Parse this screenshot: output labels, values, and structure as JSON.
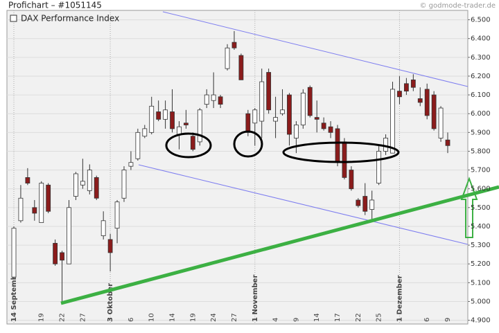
{
  "chart_data": {
    "type": "candlestick",
    "title": "Profichart – #1051145",
    "source": "© godmode-trader.de",
    "legend": "DAX Performance Index",
    "up_color": "#ffffff",
    "down_color": "#8b1c1c",
    "grid": true,
    "categories": [
      "14 September",
      null,
      null,
      null,
      "19",
      null,
      null,
      "22",
      null,
      null,
      "27",
      null,
      null,
      null,
      "3 Oktober",
      null,
      null,
      "6",
      null,
      null,
      "10",
      null,
      null,
      "14",
      null,
      null,
      "19",
      null,
      null,
      "24",
      null,
      null,
      "27",
      null,
      null,
      "1 November",
      null,
      null,
      "4",
      null,
      null,
      "9",
      null,
      null,
      "14",
      null,
      null,
      "17",
      null,
      null,
      "22",
      null,
      null,
      "25",
      null,
      null,
      "1 Dezember",
      null,
      null,
      null,
      "6",
      null,
      null,
      "9"
    ],
    "open": [
      5.13,
      5.43,
      5.66,
      5.5,
      5.42,
      5.62,
      5.31,
      5.26,
      5.2,
      5.56,
      5.62,
      5.59,
      5.66,
      5.35,
      5.33,
      5.39,
      5.55,
      5.72,
      5.76,
      5.88,
      5.9,
      6.01,
      5.97,
      6.01,
      5.89,
      5.95,
      5.88,
      5.85,
      6.05,
      6.07,
      6.09,
      6.24,
      6.38,
      6.31,
      6.0,
      5.95,
      5.96,
      6.22,
      5.96,
      6.0,
      6.1,
      5.87,
      5.94,
      6.14,
      5.98,
      5.95,
      5.93,
      5.92,
      5.85,
      5.7,
      5.54,
      5.56,
      5.49,
      5.63,
      5.8,
      5.79,
      6.12,
      6.16,
      6.18,
      6.08,
      6.13,
      6.1,
      5.87,
      5.86
    ],
    "high": [
      5.4,
      5.62,
      5.71,
      5.54,
      5.64,
      5.63,
      5.33,
      5.27,
      5.54,
      5.69,
      5.76,
      5.73,
      5.67,
      5.48,
      5.36,
      5.54,
      5.72,
      5.8,
      5.92,
      5.94,
      6.09,
      6.07,
      6.07,
      6.13,
      5.96,
      6.02,
      5.9,
      6.03,
      6.13,
      6.22,
      6.1,
      6.37,
      6.44,
      6.32,
      6.02,
      6.03,
      6.24,
      6.24,
      6.09,
      6.13,
      6.11,
      5.96,
      6.13,
      6.15,
      6.07,
      5.98,
      5.96,
      5.94,
      5.87,
      5.72,
      5.55,
      5.63,
      5.59,
      5.83,
      5.89,
      6.17,
      6.2,
      6.19,
      6.21,
      6.14,
      6.16,
      6.12,
      6.04,
      5.9
    ],
    "low": [
      5.12,
      5.42,
      5.62,
      5.43,
      5.42,
      5.47,
      5.19,
      4.99,
      5.2,
      5.54,
      5.6,
      5.57,
      5.54,
      5.33,
      5.16,
      5.31,
      5.53,
      5.7,
      5.75,
      5.87,
      5.89,
      5.96,
      5.92,
      5.9,
      5.81,
      5.92,
      5.8,
      5.83,
      6.03,
      6.03,
      6.03,
      6.23,
      6.34,
      6.18,
      5.88,
      5.83,
      5.87,
      6.0,
      5.87,
      5.99,
      5.83,
      5.79,
      5.92,
      5.98,
      5.9,
      5.91,
      5.87,
      5.72,
      5.65,
      5.59,
      5.5,
      5.46,
      5.43,
      5.62,
      5.78,
      5.79,
      6.05,
      6.1,
      6.12,
      6.04,
      5.97,
      5.91,
      5.85,
      5.79
    ],
    "close": [
      5.39,
      5.55,
      5.63,
      5.47,
      5.63,
      5.48,
      5.2,
      5.22,
      5.5,
      5.68,
      5.64,
      5.7,
      5.55,
      5.43,
      5.26,
      5.53,
      5.7,
      5.74,
      5.9,
      5.92,
      6.04,
      5.97,
      6.02,
      5.92,
      5.93,
      5.94,
      5.81,
      6.02,
      6.1,
      6.1,
      6.05,
      6.35,
      6.35,
      6.18,
      5.9,
      6.02,
      6.17,
      6.02,
      5.98,
      6.02,
      5.89,
      5.94,
      6.11,
      5.99,
      5.97,
      5.92,
      5.9,
      5.74,
      5.66,
      5.6,
      5.51,
      5.48,
      5.54,
      5.8,
      5.87,
      6.13,
      6.09,
      6.12,
      6.14,
      6.06,
      5.99,
      5.92,
      6.03,
      5.83
    ],
    "ylim": [
      4.88,
      6.55
    ],
    "yticks": [
      {
        "value": 4.9,
        "label": "4.900"
      },
      {
        "value": 5.0,
        "label": "5.000"
      },
      {
        "value": 5.1,
        "label": "5.100"
      },
      {
        "value": 5.2,
        "label": "5.200"
      },
      {
        "value": 5.3,
        "label": "5.300"
      },
      {
        "value": 5.4,
        "label": "5.400"
      },
      {
        "value": 5.5,
        "label": "5.500"
      },
      {
        "value": 5.6,
        "label": "5.600"
      },
      {
        "value": 5.7,
        "label": "5.700"
      },
      {
        "value": 5.8,
        "label": "5.800"
      },
      {
        "value": 5.9,
        "label": "5.900"
      },
      {
        "value": 6.0,
        "label": "6.000"
      },
      {
        "value": 6.1,
        "label": "6.100"
      },
      {
        "value": 6.2,
        "label": "6.200"
      },
      {
        "value": 6.3,
        "label": "6.300"
      },
      {
        "value": 6.4,
        "label": "6.400"
      },
      {
        "value": 6.5,
        "label": "6.500"
      }
    ]
  }
}
